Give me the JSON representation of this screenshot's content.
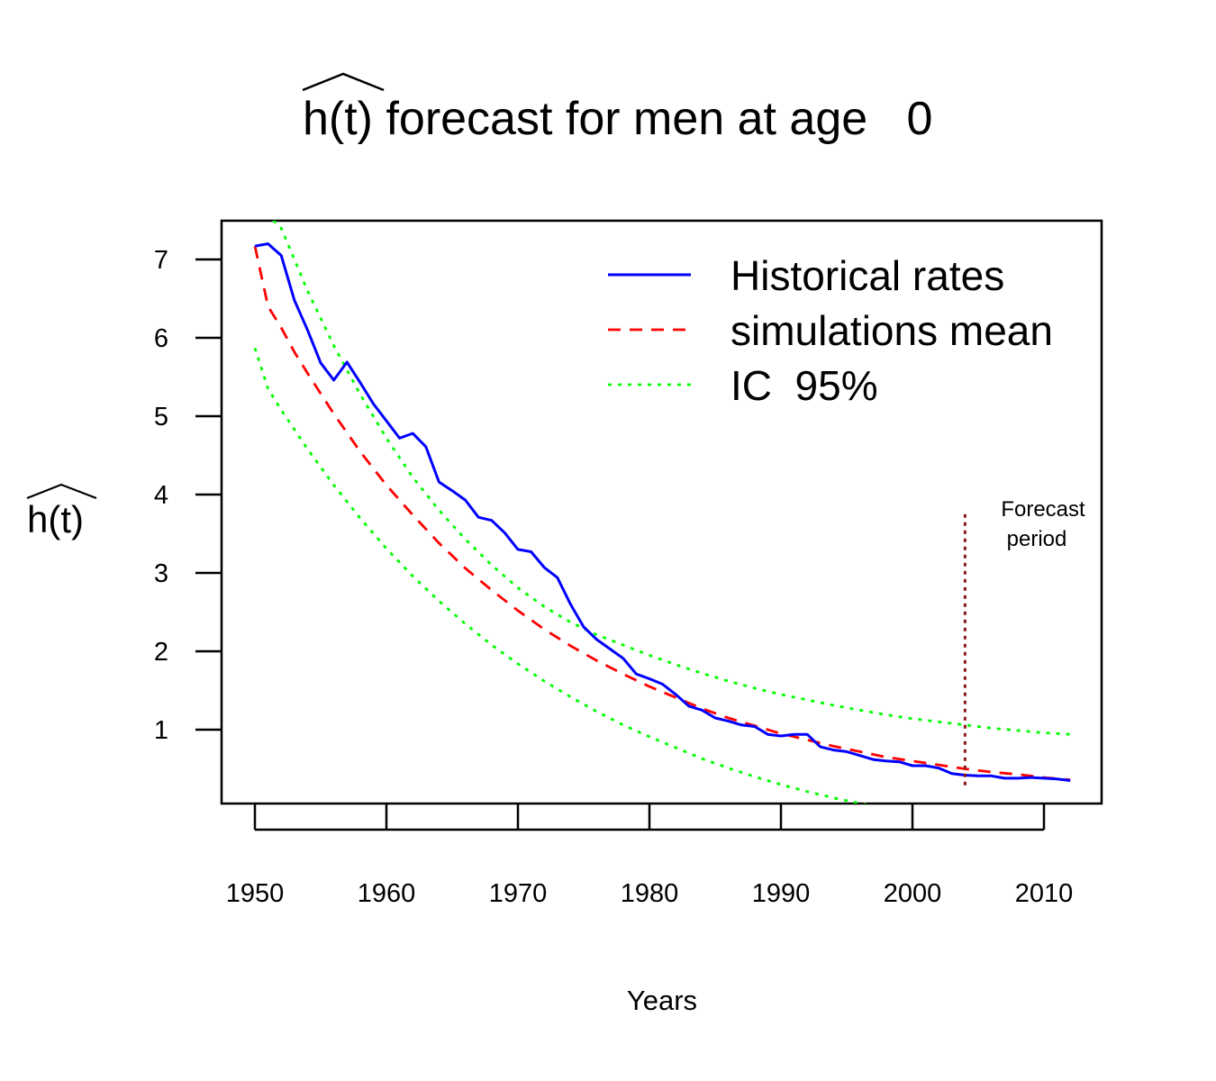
{
  "chart_data": {
    "type": "line",
    "title_prefix": "h(t)",
    "title_rest": " forecast for men at age   0",
    "xlabel": "Years",
    "ylabel": "h(t)",
    "xlim": [
      1947.5,
      2014.5
    ],
    "ylim": [
      0.0,
      7.5
    ],
    "x_ticks": [
      1950,
      1960,
      1970,
      1980,
      1990,
      2000,
      2010
    ],
    "y_ticks": [
      1,
      2,
      3,
      4,
      5,
      6,
      7
    ],
    "legend_position": "top-right",
    "annotation": {
      "line1": "Forecast",
      "line2": "period",
      "x": 2004,
      "y_top": 3.75,
      "y_bottom": 0.25,
      "color": "#8b1a1a"
    },
    "series": [
      {
        "name": "Historical rates",
        "color": "#0000ff",
        "dash": "solid",
        "x": [
          1950,
          1951,
          1952,
          1953,
          1954,
          1955,
          1956,
          1957,
          1958,
          1959,
          1960,
          1961,
          1962,
          1963,
          1964,
          1965,
          1966,
          1967,
          1968,
          1969,
          1970,
          1971,
          1972,
          1973,
          1974,
          1975,
          1976,
          1977,
          1978,
          1979,
          1980,
          1981,
          1982,
          1983,
          1984,
          1985,
          1986,
          1987,
          1988,
          1989,
          1990,
          1991,
          1992,
          1993,
          1994,
          1995,
          1996,
          1997,
          1998,
          1999,
          2000,
          2001,
          2002,
          2003,
          2004,
          2005,
          2006,
          2007,
          2008,
          2009,
          2010,
          2011,
          2012
        ],
        "values": [
          7.17,
          7.2,
          7.05,
          6.48,
          6.1,
          5.68,
          5.46,
          5.69,
          5.43,
          5.16,
          4.94,
          4.72,
          4.78,
          4.61,
          4.16,
          4.05,
          3.93,
          3.71,
          3.67,
          3.51,
          3.3,
          3.27,
          3.07,
          2.94,
          2.6,
          2.31,
          2.15,
          2.03,
          1.91,
          1.71,
          1.65,
          1.58,
          1.45,
          1.3,
          1.25,
          1.15,
          1.11,
          1.06,
          1.04,
          0.94,
          0.92,
          0.94,
          0.94,
          0.78,
          0.74,
          0.72,
          0.67,
          0.62,
          0.6,
          0.59,
          0.54,
          0.54,
          0.51,
          0.44,
          0.42,
          0.41,
          0.41,
          0.38,
          0.38,
          0.39,
          0.38,
          0.37,
          0.35
        ]
      },
      {
        "name": "simulations mean",
        "color": "#ff0000",
        "dash": "dashed",
        "x": [
          1950,
          1951,
          1952,
          1953,
          1954,
          1956,
          1958,
          1960,
          1962,
          1964,
          1966,
          1968,
          1970,
          1972,
          1974,
          1976,
          1978,
          1980,
          1982,
          1984,
          1986,
          1988,
          1990,
          1992,
          1994,
          1996,
          1998,
          2000,
          2002,
          2004,
          2006,
          2008,
          2010,
          2012
        ],
        "values": [
          7.17,
          6.4,
          6.13,
          5.82,
          5.55,
          5.03,
          4.55,
          4.12,
          3.74,
          3.38,
          3.06,
          2.78,
          2.52,
          2.28,
          2.07,
          1.88,
          1.71,
          1.55,
          1.41,
          1.27,
          1.15,
          1.05,
          0.95,
          0.87,
          0.79,
          0.72,
          0.65,
          0.6,
          0.55,
          0.5,
          0.46,
          0.43,
          0.39,
          0.36
        ]
      },
      {
        "name": "IC  95%",
        "color": "#00ff00",
        "dash": "dotted",
        "x": [
          1951.4,
          1952,
          1954,
          1956,
          1958,
          1960,
          1962,
          1964,
          1966,
          1968,
          1970,
          1972,
          1974,
          1976,
          1978,
          1980,
          1982,
          1984,
          1986,
          1988,
          1990,
          1992,
          1994,
          1996,
          1998,
          2000,
          2002,
          2004,
          2006,
          2008,
          2010,
          2012
        ],
        "values": [
          7.5,
          7.4,
          6.6,
          5.9,
          5.28,
          4.72,
          4.22,
          3.8,
          3.43,
          3.1,
          2.81,
          2.57,
          2.37,
          2.21,
          2.08,
          1.95,
          1.83,
          1.72,
          1.62,
          1.53,
          1.45,
          1.38,
          1.31,
          1.25,
          1.19,
          1.14,
          1.1,
          1.06,
          1.02,
          0.99,
          0.96,
          0.94
        ]
      },
      {
        "name": "",
        "color": "#00ff00",
        "dash": "dotted",
        "x": [
          1950,
          1951,
          1952,
          1954,
          1956,
          1958,
          1960,
          1962,
          1964,
          1966,
          1968,
          1970,
          1972,
          1974,
          1976,
          1978,
          1980,
          1982,
          1984,
          1986,
          1988,
          1990,
          1992,
          1994,
          1996,
          1998
        ],
        "values": [
          5.87,
          5.35,
          5.08,
          4.58,
          4.12,
          3.7,
          3.31,
          2.96,
          2.64,
          2.35,
          2.08,
          1.84,
          1.62,
          1.42,
          1.23,
          1.06,
          0.91,
          0.77,
          0.63,
          0.51,
          0.4,
          0.3,
          0.21,
          0.13,
          0.06,
          0.0
        ]
      }
    ]
  }
}
